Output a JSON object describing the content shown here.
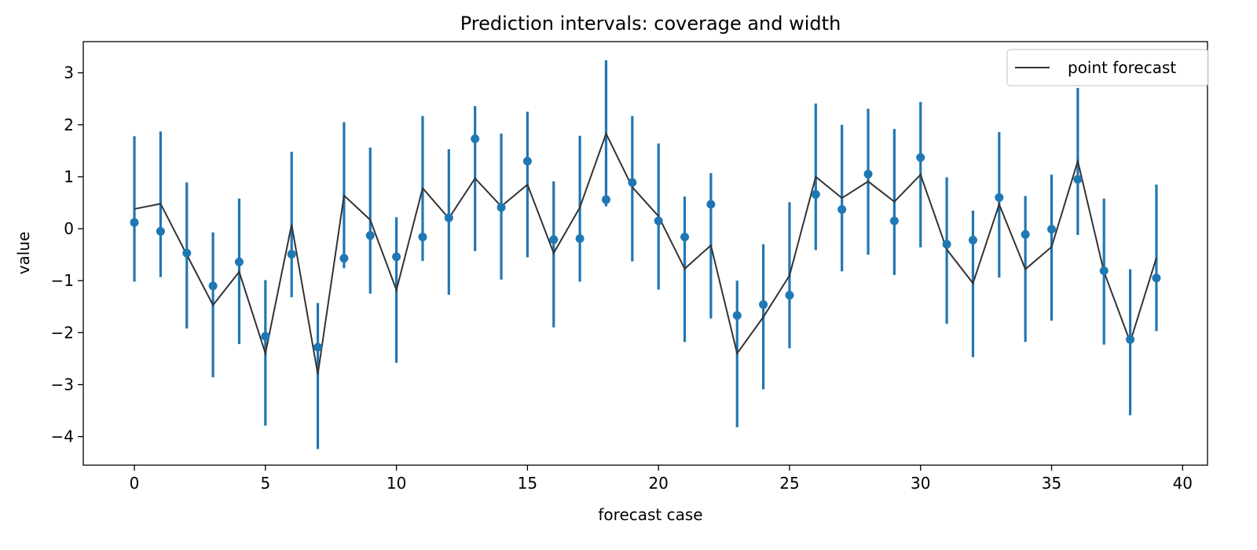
{
  "chart_data": {
    "type": "scatter",
    "title": "Prediction intervals: coverage and width",
    "xlabel": "forecast case",
    "ylabel": "value",
    "xlim": [
      -1.95,
      40.95
    ],
    "ylim": [
      -4.55,
      3.6
    ],
    "xticks": [
      0,
      5,
      10,
      15,
      20,
      25,
      30,
      35,
      40
    ],
    "yticks": [
      -4,
      -3,
      -2,
      -1,
      0,
      1,
      2,
      3
    ],
    "legend": {
      "placement": "top-right",
      "entries": [
        "point forecast"
      ]
    },
    "colors": {
      "interval": "#1f77b4",
      "point_forecast": "#333333",
      "observed": "#1f77b4"
    },
    "x": [
      0,
      1,
      2,
      3,
      4,
      5,
      6,
      7,
      8,
      9,
      10,
      11,
      12,
      13,
      14,
      15,
      16,
      17,
      18,
      19,
      20,
      21,
      22,
      23,
      24,
      25,
      26,
      27,
      28,
      29,
      30,
      31,
      32,
      33,
      34,
      35,
      36,
      37,
      38,
      39
    ],
    "series": [
      {
        "name": "point forecast",
        "kind": "line",
        "values": [
          0.38,
          0.48,
          -0.5,
          -1.47,
          -0.83,
          -2.4,
          0.08,
          -2.8,
          0.64,
          0.17,
          -1.18,
          0.78,
          0.2,
          0.97,
          0.43,
          0.85,
          -0.47,
          0.41,
          1.83,
          0.8,
          0.24,
          -0.77,
          -0.32,
          -2.4,
          -1.7,
          -0.9,
          1.0,
          0.59,
          0.91,
          0.52,
          1.04,
          -0.4,
          -1.05,
          0.47,
          -0.78,
          -0.35,
          1.3,
          -0.83,
          -2.18,
          -0.56
        ]
      },
      {
        "kind": "interval",
        "lower": [
          -1.02,
          -0.93,
          -1.92,
          -2.86,
          -2.22,
          -3.79,
          -1.32,
          -4.24,
          -0.76,
          -1.25,
          -2.58,
          -0.62,
          -1.27,
          -0.43,
          -0.98,
          -0.55,
          -1.9,
          -1.02,
          0.43,
          -0.63,
          -1.17,
          -2.18,
          -1.73,
          -3.82,
          -3.09,
          -2.3,
          -0.41,
          -0.82,
          -0.5,
          -0.89,
          -0.36,
          -1.83,
          -2.47,
          -0.94,
          -2.18,
          -1.77,
          -0.12,
          -2.23,
          -3.59,
          -1.97
        ],
        "upper": [
          1.78,
          1.87,
          0.89,
          -0.07,
          0.58,
          -0.99,
          1.48,
          -1.43,
          2.05,
          1.56,
          0.22,
          2.17,
          1.53,
          2.36,
          1.83,
          2.25,
          0.91,
          1.79,
          3.24,
          2.17,
          1.64,
          0.62,
          1.07,
          -1.0,
          -0.3,
          0.51,
          2.41,
          2.0,
          2.31,
          1.92,
          2.44,
          0.99,
          0.35,
          1.86,
          0.63,
          1.04,
          2.71,
          0.58,
          -0.78,
          0.85
        ]
      },
      {
        "kind": "observed",
        "values": [
          0.12,
          -0.05,
          -0.47,
          -1.1,
          -0.64,
          -2.07,
          -0.49,
          -2.28,
          -0.57,
          -0.13,
          -0.54,
          -0.16,
          0.21,
          1.73,
          0.41,
          1.3,
          -0.21,
          -0.19,
          0.56,
          0.89,
          0.15,
          -0.16,
          0.47,
          -1.67,
          -1.46,
          -1.28,
          0.66,
          0.37,
          1.05,
          0.15,
          1.37,
          -0.3,
          -0.22,
          0.6,
          -0.11,
          -0.01,
          0.95,
          -0.81,
          -2.13,
          -0.95
        ]
      }
    ]
  }
}
